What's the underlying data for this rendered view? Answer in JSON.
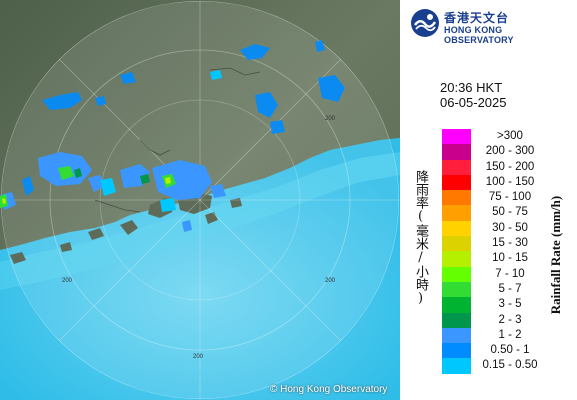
{
  "header": {
    "logo_zh": "香港天文台",
    "logo_en": "HONG KONG OBSERVATORY",
    "time": "20:36 HKT",
    "date": "06-05-2025"
  },
  "legend": {
    "title_zh": "降雨率(毫米/小時)",
    "title_en": "Rainfall Rate (mm/h)",
    "items": [
      {
        "label": ">300",
        "color": "#ff00ff"
      },
      {
        "label": "200 - 300",
        "color": "#c8008c"
      },
      {
        "label": "150 - 200",
        "color": "#ff1e3c"
      },
      {
        "label": "100 - 150",
        "color": "#ff0000"
      },
      {
        "label": "75 - 100",
        "color": "#ff7800"
      },
      {
        "label": "50 - 75",
        "color": "#ffa000"
      },
      {
        "label": "30 - 50",
        "color": "#ffd200"
      },
      {
        "label": "15 - 30",
        "color": "#dcd200"
      },
      {
        "label": "10 - 15",
        "color": "#b4f000"
      },
      {
        "label": "7 - 10",
        "color": "#64ff00"
      },
      {
        "label": "5 - 7",
        "color": "#32dc32"
      },
      {
        "label": "3 - 5",
        "color": "#00b432"
      },
      {
        "label": "2 - 3",
        "color": "#00964b"
      },
      {
        "label": "1 - 2",
        "color": "#3c96ff"
      },
      {
        "label": "0.50 - 1",
        "color": "#008cff"
      },
      {
        "label": "0.15 - 0.50",
        "color": "#00c8ff"
      }
    ]
  },
  "map": {
    "range_labels": [
      "200",
      "200",
      "200",
      "200"
    ],
    "copyright": "© Hong Kong Observatory",
    "colors": {
      "land": "#5a6a55",
      "sea": "#3cc8ee",
      "range_ring": "#ffffff"
    }
  }
}
